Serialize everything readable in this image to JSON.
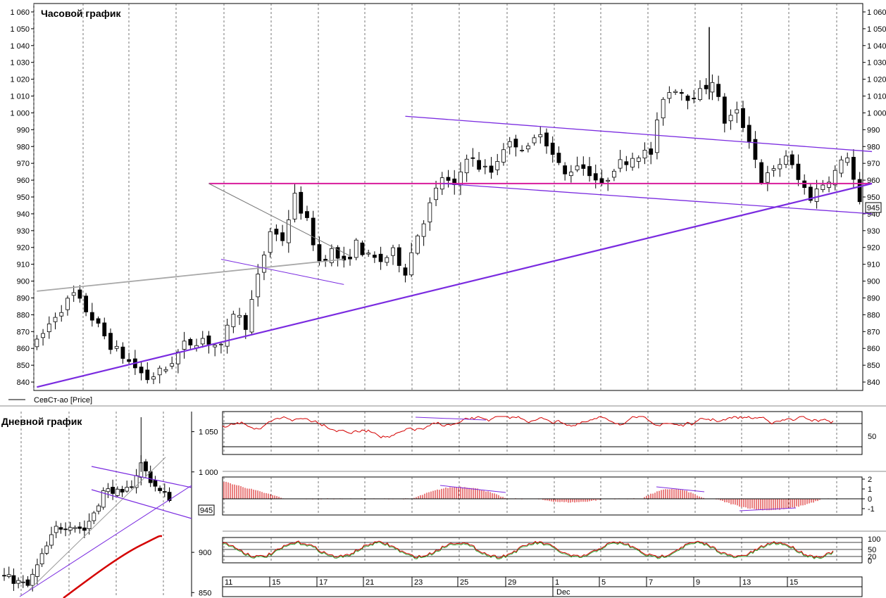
{
  "main": {
    "title": "Часовой график",
    "legend": "СевСт-ао [Price]",
    "price_marker": "945"
  },
  "daily": {
    "title": "Дневной график",
    "price_marker": "945"
  },
  "colors": {
    "candle": "#000000",
    "trend_purple": "#7a2be0",
    "level_magenta": "#d81b9b",
    "grey_line": "#a8a8a8",
    "indicator_red": "#d40000",
    "grid_dashed": "#555555"
  },
  "chart_data": [
    {
      "type": "candlestick",
      "name": "hourly",
      "ylim": [
        835,
        1065
      ],
      "yticks": [
        840,
        850,
        860,
        870,
        880,
        890,
        900,
        910,
        920,
        930,
        940,
        950,
        960,
        970,
        980,
        990,
        1000,
        1010,
        1020,
        1030,
        1040,
        1050,
        1060
      ],
      "ytick_labels": [
        "840",
        "850",
        "860",
        "870",
        "880",
        "890",
        "900",
        "910",
        "920",
        "930",
        "940",
        "950",
        "960",
        "970",
        "980",
        "990",
        "1 000",
        "1 010",
        "1 020",
        "1 030",
        "1 040",
        "1 050",
        "1 060"
      ],
      "ytick_labels_right": [
        "840",
        "850",
        "860",
        "870",
        "880",
        "890",
        "900",
        "910",
        "920",
        "930",
        "940",
        "950",
        "960",
        "970",
        "980",
        "990",
        "1 000",
        "1 010",
        "1 020",
        "1 030",
        "1 040",
        "1 050",
        "1 060"
      ],
      "close_path": [
        [
          0,
          863
        ],
        [
          3,
          880
        ],
        [
          6,
          892
        ],
        [
          9,
          878
        ],
        [
          12,
          862
        ],
        [
          15,
          852
        ],
        [
          18,
          842
        ],
        [
          21,
          848
        ],
        [
          24,
          862
        ],
        [
          27,
          866
        ],
        [
          30,
          860
        ],
        [
          32,
          882
        ],
        [
          34,
          874
        ],
        [
          36,
          902
        ],
        [
          38,
          930
        ],
        [
          40,
          925
        ],
        [
          42,
          950
        ],
        [
          44,
          935
        ],
        [
          46,
          912
        ],
        [
          48,
          918
        ],
        [
          50,
          910
        ],
        [
          52,
          922
        ],
        [
          54,
          914
        ],
        [
          56,
          912
        ],
        [
          58,
          917
        ],
        [
          60,
          906
        ],
        [
          62,
          928
        ],
        [
          64,
          945
        ],
        [
          66,
          962
        ],
        [
          68,
          955
        ],
        [
          70,
          975
        ],
        [
          72,
          968
        ],
        [
          74,
          965
        ],
        [
          76,
          980
        ],
        [
          78,
          982
        ],
        [
          80,
          978
        ],
        [
          82,
          990
        ],
        [
          84,
          975
        ],
        [
          86,
          963
        ],
        [
          88,
          970
        ],
        [
          90,
          965
        ],
        [
          92,
          956
        ],
        [
          94,
          968
        ],
        [
          96,
          972
        ],
        [
          98,
          976
        ],
        [
          100,
          976
        ],
        [
          102,
          1010
        ],
        [
          104,
          1015
        ],
        [
          106,
          1010
        ],
        [
          108,
          1012
        ],
        [
          110,
          1020
        ],
        [
          112,
          995
        ],
        [
          114,
          1000
        ],
        [
          116,
          985
        ],
        [
          118,
          960
        ],
        [
          120,
          965
        ],
        [
          122,
          975
        ],
        [
          124,
          960
        ],
        [
          126,
          950
        ],
        [
          128,
          958
        ],
        [
          130,
          965
        ],
        [
          132,
          975
        ],
        [
          134,
          945
        ]
      ],
      "bars": 135,
      "date_ticks": [
        "11",
        "15",
        "17",
        "21",
        "23",
        "25",
        "29",
        "1",
        "5",
        "7",
        "9",
        "13",
        "15"
      ],
      "month_label": "Dec",
      "annotations": {
        "horizontal_level": 958,
        "support_trend": {
          "from": [
            0,
            837
          ],
          "to": [
            136,
            958
          ]
        },
        "channel_upper": {
          "from": [
            60,
            998
          ],
          "to": [
            136,
            977
          ]
        },
        "channel_lower": {
          "from": [
            66,
            958
          ],
          "to": [
            136,
            940
          ]
        },
        "triangle_upper": {
          "from": [
            28,
            958
          ],
          "to": [
            51,
            915
          ]
        },
        "triangle_lower": {
          "from": [
            30,
            913
          ],
          "to": [
            50,
            898
          ]
        },
        "grey_trend": {
          "from": [
            0,
            894
          ],
          "to": [
            50,
            913
          ]
        }
      }
    },
    {
      "type": "candlestick",
      "name": "daily",
      "ylim": [
        845,
        1075
      ],
      "ytick_labels": [
        "850",
        "900",
        "1 000",
        "1 050"
      ],
      "yticks": [
        850,
        900,
        1000,
        1050
      ]
    },
    {
      "type": "line",
      "name": "oscillator_1",
      "ytick_labels": [
        "50"
      ],
      "ylim": [
        0,
        100
      ]
    },
    {
      "type": "bar",
      "name": "histogram",
      "ytick_labels": [
        "2",
        "1",
        "0",
        "-1"
      ],
      "ylim": [
        -1.5,
        2
      ]
    },
    {
      "type": "line",
      "name": "stochastic",
      "ytick_labels": [
        "100",
        "50",
        "20",
        "0"
      ],
      "ylim": [
        0,
        100
      ]
    }
  ]
}
